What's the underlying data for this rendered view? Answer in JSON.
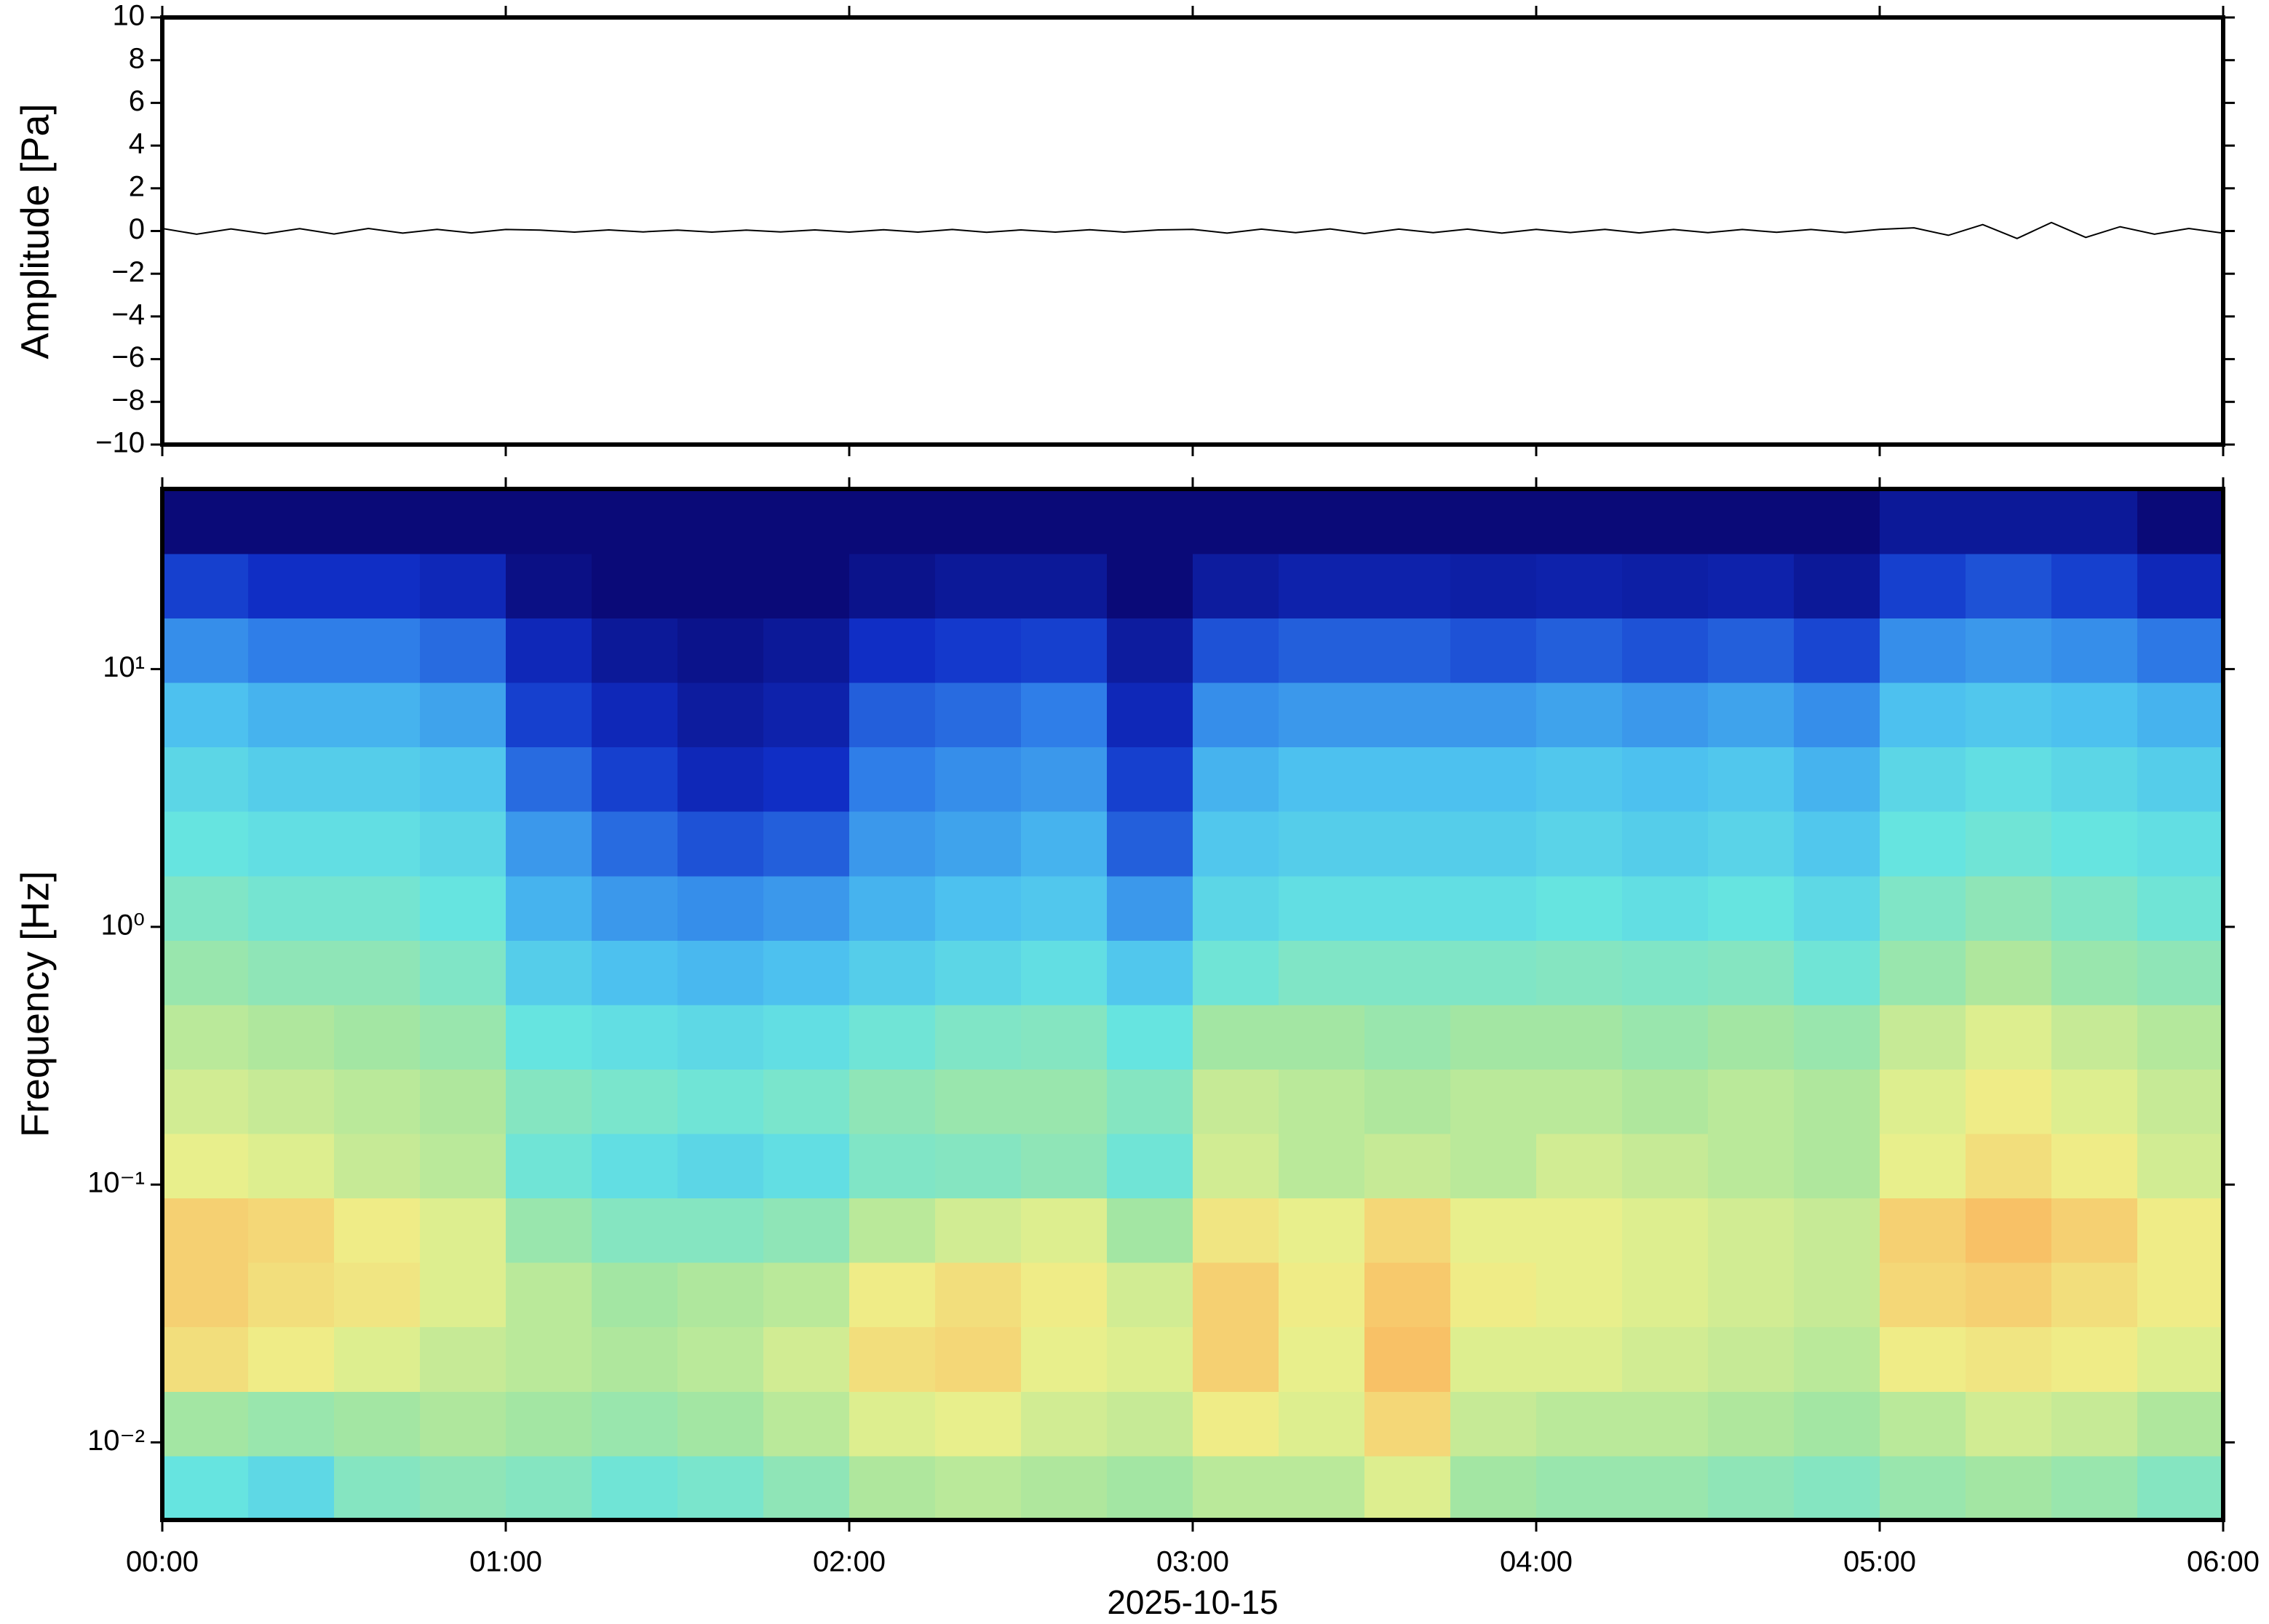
{
  "chart_data": [
    {
      "type": "line",
      "ylabel": "Amplitude [Pa]",
      "color": "#000000",
      "x": [
        0,
        0.1,
        0.2,
        0.3,
        0.4,
        0.5,
        0.6,
        0.7,
        0.8,
        0.9,
        1,
        1.1,
        1.2,
        1.3,
        1.4,
        1.5,
        1.6,
        1.7,
        1.8,
        1.9,
        2,
        2.1,
        2.2,
        2.3,
        2.4,
        2.5,
        2.6,
        2.7,
        2.8,
        2.9,
        3,
        3.1,
        3.2,
        3.3,
        3.4,
        3.5,
        3.6,
        3.7,
        3.8,
        3.9,
        4,
        4.1,
        4.2,
        4.3,
        4.4,
        4.5,
        4.6,
        4.7,
        4.8,
        4.9,
        5,
        5.1,
        5.2,
        5.3,
        5.4,
        5.5,
        5.6,
        5.7,
        5.8,
        5.9,
        6
      ],
      "values": [
        0.12,
        -0.15,
        0.1,
        -0.13,
        0.11,
        -0.14,
        0.12,
        -0.1,
        0.08,
        -0.09,
        0.07,
        0.04,
        -0.05,
        0.05,
        -0.04,
        0.04,
        -0.05,
        0.04,
        -0.04,
        0.05,
        -0.05,
        0.06,
        -0.05,
        0.07,
        -0.06,
        0.05,
        -0.05,
        0.06,
        -0.05,
        0.05,
        0.08,
        -0.1,
        0.09,
        -0.08,
        0.1,
        -0.12,
        0.09,
        -0.08,
        0.09,
        -0.1,
        0.08,
        -0.07,
        0.08,
        -0.09,
        0.07,
        -0.08,
        0.07,
        -0.06,
        0.07,
        -0.07,
        0.08,
        0.15,
        -0.2,
        0.3,
        -0.35,
        0.4,
        -0.3,
        0.2,
        -0.15,
        0.12,
        -0.1
      ],
      "xlim": [
        0,
        6
      ],
      "xticks": [
        0,
        1,
        2,
        3,
        4,
        5,
        6
      ],
      "ylim": [
        -10,
        10
      ],
      "yticks": [
        {
          "value": -10,
          "label": "−10"
        },
        {
          "value": -8,
          "label": "−8"
        },
        {
          "value": -6,
          "label": "−6"
        },
        {
          "value": -4,
          "label": "−4"
        },
        {
          "value": -2,
          "label": "−2"
        },
        0,
        2,
        4,
        6,
        8,
        10
      ]
    },
    {
      "type": "heatmap",
      "ylabel": "Frequency [Hz]",
      "xlabel": "2025-10-15",
      "log_y": true,
      "colormap": [
        "#0a0a78",
        "#1030c8",
        "#2f7ee8",
        "#4cc0f0",
        "#66e4e0",
        "#a6e6a0",
        "#eef08a",
        "#f8c468",
        "#ee7a3c"
      ],
      "xlim": [
        0,
        6
      ],
      "xticks": [
        {
          "value": 0,
          "label": "00:00"
        },
        {
          "value": 1,
          "label": "01:00"
        },
        {
          "value": 2,
          "label": "02:00"
        },
        {
          "value": 3,
          "label": "03:00"
        },
        {
          "value": 4,
          "label": "04:00"
        },
        {
          "value": 5,
          "label": "05:00"
        },
        {
          "value": 6,
          "label": "06:00"
        }
      ],
      "ylim": [
        0.005,
        50
      ],
      "yticks": [
        {
          "value": 0.01,
          "label": "10⁻²"
        },
        {
          "value": 0.1,
          "label": "10⁻¹"
        },
        {
          "value": 1,
          "label": "10⁰"
        },
        {
          "value": 10,
          "label": "10¹"
        }
      ],
      "x_bins": [
        0,
        0.25,
        0.5,
        0.75,
        1,
        1.25,
        1.5,
        1.75,
        2,
        2.25,
        2.5,
        2.75,
        3,
        3.25,
        3.5,
        3.75,
        4,
        4.25,
        4.5,
        4.75,
        5,
        5.25,
        5.5,
        5.75,
        6
      ],
      "y_bins": [
        0.005,
        0.00889,
        0.0158,
        0.0281,
        0.05,
        0.0889,
        0.158,
        0.281,
        0.5,
        0.889,
        1.58,
        2.81,
        5,
        8.89,
        15.8,
        28.1,
        50
      ],
      "z": [
        [
          0.5,
          0.46,
          0.56,
          0.58,
          0.56,
          0.52,
          0.54,
          0.58,
          0.64,
          0.66,
          0.64,
          0.62,
          0.66,
          0.66,
          0.72,
          0.62,
          0.6,
          0.6,
          0.58,
          0.56,
          0.6,
          0.62,
          0.6,
          0.56
        ],
        [
          0.62,
          0.6,
          0.62,
          0.64,
          0.62,
          0.6,
          0.62,
          0.66,
          0.72,
          0.74,
          0.7,
          0.68,
          0.76,
          0.72,
          0.82,
          0.68,
          0.66,
          0.66,
          0.64,
          0.62,
          0.66,
          0.7,
          0.68,
          0.64
        ],
        [
          0.8,
          0.76,
          0.72,
          0.68,
          0.66,
          0.64,
          0.66,
          0.7,
          0.8,
          0.82,
          0.74,
          0.72,
          0.84,
          0.74,
          0.88,
          0.72,
          0.72,
          0.7,
          0.68,
          0.66,
          0.76,
          0.78,
          0.76,
          0.72
        ],
        [
          0.84,
          0.8,
          0.78,
          0.72,
          0.66,
          0.62,
          0.64,
          0.66,
          0.76,
          0.8,
          0.76,
          0.7,
          0.84,
          0.76,
          0.86,
          0.76,
          0.74,
          0.72,
          0.7,
          0.68,
          0.82,
          0.84,
          0.8,
          0.76
        ],
        [
          0.84,
          0.82,
          0.76,
          0.72,
          0.6,
          0.56,
          0.56,
          0.58,
          0.66,
          0.7,
          0.72,
          0.62,
          0.78,
          0.74,
          0.82,
          0.74,
          0.74,
          0.72,
          0.7,
          0.68,
          0.84,
          0.88,
          0.84,
          0.76
        ],
        [
          0.74,
          0.72,
          0.68,
          0.66,
          0.52,
          0.48,
          0.45,
          0.48,
          0.55,
          0.56,
          0.58,
          0.52,
          0.7,
          0.66,
          0.68,
          0.66,
          0.7,
          0.68,
          0.66,
          0.64,
          0.74,
          0.8,
          0.76,
          0.7
        ],
        [
          0.7,
          0.68,
          0.66,
          0.64,
          0.56,
          0.54,
          0.52,
          0.54,
          0.58,
          0.6,
          0.6,
          0.56,
          0.68,
          0.66,
          0.64,
          0.66,
          0.66,
          0.64,
          0.66,
          0.64,
          0.72,
          0.76,
          0.72,
          0.68
        ],
        [
          0.66,
          0.64,
          0.62,
          0.6,
          0.5,
          0.48,
          0.46,
          0.48,
          0.52,
          0.55,
          0.56,
          0.5,
          0.62,
          0.62,
          0.6,
          0.62,
          0.62,
          0.6,
          0.62,
          0.6,
          0.68,
          0.72,
          0.68,
          0.65
        ],
        [
          0.6,
          0.58,
          0.58,
          0.55,
          0.42,
          0.38,
          0.36,
          0.38,
          0.42,
          0.45,
          0.48,
          0.4,
          0.52,
          0.55,
          0.55,
          0.55,
          0.56,
          0.55,
          0.56,
          0.52,
          0.6,
          0.64,
          0.6,
          0.58
        ],
        [
          0.55,
          0.53,
          0.53,
          0.5,
          0.35,
          0.3,
          0.28,
          0.3,
          0.35,
          0.38,
          0.4,
          0.3,
          0.45,
          0.48,
          0.48,
          0.48,
          0.5,
          0.48,
          0.5,
          0.46,
          0.55,
          0.58,
          0.55,
          0.52
        ],
        [
          0.5,
          0.48,
          0.48,
          0.45,
          0.3,
          0.22,
          0.18,
          0.2,
          0.3,
          0.32,
          0.35,
          0.2,
          0.4,
          0.42,
          0.42,
          0.42,
          0.44,
          0.42,
          0.44,
          0.4,
          0.5,
          0.52,
          0.5,
          0.48
        ],
        [
          0.45,
          0.42,
          0.42,
          0.4,
          0.22,
          0.15,
          0.1,
          0.12,
          0.25,
          0.28,
          0.3,
          0.15,
          0.35,
          0.38,
          0.38,
          0.38,
          0.4,
          0.38,
          0.4,
          0.35,
          0.45,
          0.48,
          0.45,
          0.42
        ],
        [
          0.38,
          0.35,
          0.35,
          0.32,
          0.15,
          0.1,
          0.06,
          0.08,
          0.2,
          0.22,
          0.25,
          0.1,
          0.28,
          0.3,
          0.3,
          0.3,
          0.32,
          0.3,
          0.32,
          0.28,
          0.38,
          0.4,
          0.38,
          0.35
        ],
        [
          0.28,
          0.25,
          0.25,
          0.22,
          0.1,
          0.05,
          0.03,
          0.05,
          0.12,
          0.14,
          0.15,
          0.06,
          0.18,
          0.2,
          0.2,
          0.18,
          0.2,
          0.18,
          0.2,
          0.16,
          0.28,
          0.3,
          0.28,
          0.24
        ],
        [
          0.15,
          0.12,
          0.12,
          0.1,
          0.02,
          0,
          0,
          0,
          0.03,
          0.05,
          0.05,
          0,
          0.06,
          0.08,
          0.08,
          0.07,
          0.08,
          0.07,
          0.08,
          0.05,
          0.15,
          0.18,
          0.15,
          0.1
        ],
        [
          0,
          0,
          0,
          0,
          0,
          0,
          0,
          0,
          0,
          0,
          0,
          0,
          0,
          0,
          0,
          0,
          0,
          0,
          0,
          0,
          0.05,
          0.05,
          0.05,
          0
        ]
      ]
    }
  ]
}
